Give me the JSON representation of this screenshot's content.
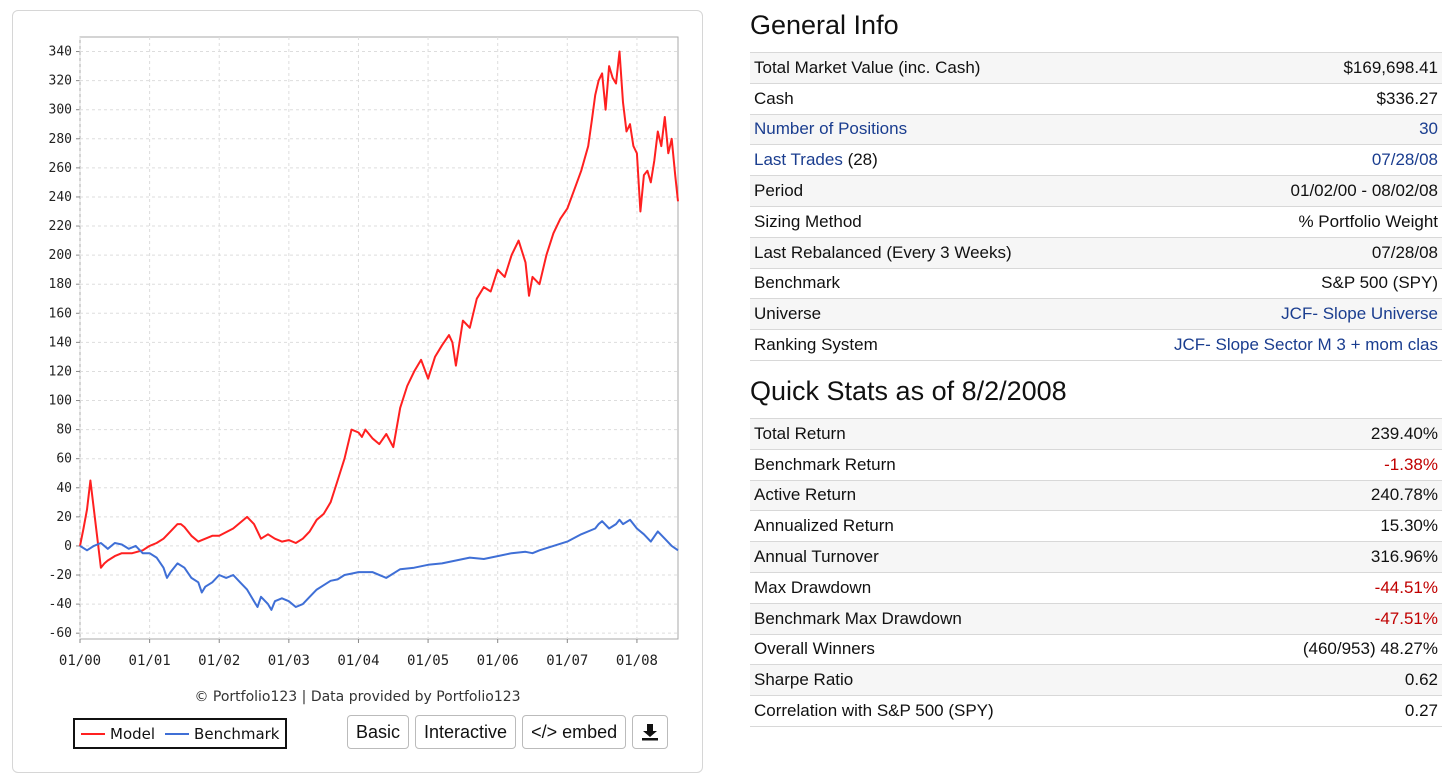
{
  "chart": {
    "credit": "© Portfolio123 | Data provided by Portfolio123",
    "legend": [
      {
        "name": "Model",
        "color": "#ff2020"
      },
      {
        "name": "Benchmark",
        "color": "#3f6fd6"
      }
    ],
    "buttons": {
      "basic": "Basic",
      "interactive": "Interactive",
      "embed": "</> embed",
      "download_icon": "download-icon"
    }
  },
  "chart_data": {
    "type": "line",
    "xlabel": "",
    "ylabel": "",
    "x_ticks": [
      "01/00",
      "01/01",
      "01/02",
      "01/03",
      "01/04",
      "01/05",
      "01/06",
      "01/07",
      "01/08"
    ],
    "x_range": [
      2000.0,
      2008.59
    ],
    "y_ticks": [
      340,
      320,
      300,
      280,
      260,
      240,
      220,
      200,
      180,
      160,
      140,
      120,
      100,
      80,
      60,
      40,
      20,
      0,
      -20,
      -40,
      -60
    ],
    "ylim": [
      -64,
      350
    ],
    "grid": true,
    "legend_position": "bottom-left",
    "series": [
      {
        "name": "Model",
        "color": "#ff2020",
        "x": [
          2000.0,
          2000.05,
          2000.1,
          2000.15,
          2000.2,
          2000.25,
          2000.3,
          2000.35,
          2000.4,
          2000.5,
          2000.6,
          2000.75,
          2000.9,
          2001.0,
          2001.1,
          2001.2,
          2001.3,
          2001.4,
          2001.45,
          2001.5,
          2001.6,
          2001.7,
          2001.8,
          2001.9,
          2002.0,
          2002.2,
          2002.4,
          2002.5,
          2002.6,
          2002.7,
          2002.8,
          2002.9,
          2003.0,
          2003.1,
          2003.2,
          2003.3,
          2003.4,
          2003.5,
          2003.6,
          2003.7,
          2003.8,
          2003.9,
          2004.0,
          2004.05,
          2004.1,
          2004.2,
          2004.3,
          2004.4,
          2004.5,
          2004.6,
          2004.7,
          2004.8,
          2004.9,
          2005.0,
          2005.1,
          2005.2,
          2005.3,
          2005.35,
          2005.4,
          2005.5,
          2005.6,
          2005.7,
          2005.8,
          2005.9,
          2006.0,
          2006.1,
          2006.2,
          2006.3,
          2006.4,
          2006.45,
          2006.5,
          2006.6,
          2006.7,
          2006.8,
          2006.9,
          2007.0,
          2007.1,
          2007.2,
          2007.3,
          2007.35,
          2007.4,
          2007.45,
          2007.5,
          2007.55,
          2007.6,
          2007.65,
          2007.7,
          2007.75,
          2007.8,
          2007.85,
          2007.9,
          2007.95,
          2008.0,
          2008.05,
          2008.1,
          2008.15,
          2008.2,
          2008.25,
          2008.3,
          2008.35,
          2008.4,
          2008.45,
          2008.5,
          2008.55,
          2008.59
        ],
        "y": [
          0,
          12,
          25,
          45,
          25,
          5,
          -15,
          -12,
          -10,
          -7,
          -5,
          -5,
          -3,
          0,
          2,
          5,
          10,
          15,
          15,
          13,
          7,
          3,
          5,
          7,
          7,
          12,
          20,
          15,
          5,
          8,
          5,
          3,
          4,
          2,
          5,
          10,
          18,
          22,
          30,
          45,
          60,
          80,
          78,
          75,
          80,
          74,
          70,
          77,
          68,
          95,
          110,
          120,
          128,
          115,
          130,
          138,
          145,
          140,
          124,
          155,
          150,
          170,
          178,
          175,
          190,
          185,
          200,
          210,
          195,
          172,
          185,
          180,
          200,
          215,
          225,
          232,
          245,
          258,
          275,
          292,
          310,
          320,
          325,
          300,
          330,
          322,
          318,
          340,
          305,
          285,
          290,
          275,
          270,
          230,
          255,
          258,
          250,
          265,
          285,
          275,
          295,
          270,
          280,
          255,
          237
        ]
      },
      {
        "name": "Benchmark",
        "color": "#3f6fd6",
        "x": [
          2000.0,
          2000.1,
          2000.2,
          2000.3,
          2000.4,
          2000.5,
          2000.6,
          2000.7,
          2000.8,
          2000.9,
          2001.0,
          2001.1,
          2001.2,
          2001.25,
          2001.3,
          2001.4,
          2001.5,
          2001.6,
          2001.7,
          2001.75,
          2001.8,
          2001.9,
          2002.0,
          2002.1,
          2002.2,
          2002.3,
          2002.4,
          2002.5,
          2002.55,
          2002.6,
          2002.7,
          2002.75,
          2002.8,
          2002.9,
          2003.0,
          2003.1,
          2003.2,
          2003.3,
          2003.4,
          2003.5,
          2003.6,
          2003.7,
          2003.8,
          2003.9,
          2004.0,
          2004.2,
          2004.4,
          2004.6,
          2004.8,
          2005.0,
          2005.2,
          2005.4,
          2005.6,
          2005.8,
          2006.0,
          2006.2,
          2006.4,
          2006.5,
          2006.6,
          2006.8,
          2007.0,
          2007.2,
          2007.4,
          2007.45,
          2007.5,
          2007.6,
          2007.7,
          2007.75,
          2007.8,
          2007.9,
          2008.0,
          2008.1,
          2008.2,
          2008.3,
          2008.4,
          2008.5,
          2008.59
        ],
        "y": [
          0,
          -3,
          0,
          2,
          -2,
          2,
          1,
          -2,
          0,
          -5,
          -5,
          -8,
          -15,
          -22,
          -18,
          -12,
          -15,
          -22,
          -25,
          -32,
          -28,
          -25,
          -20,
          -22,
          -20,
          -25,
          -30,
          -38,
          -42,
          -35,
          -40,
          -44,
          -38,
          -36,
          -38,
          -42,
          -40,
          -35,
          -30,
          -27,
          -24,
          -23,
          -20,
          -19,
          -18,
          -18,
          -22,
          -16,
          -15,
          -13,
          -12,
          -10,
          -8,
          -9,
          -7,
          -5,
          -4,
          -5,
          -3,
          0,
          3,
          8,
          12,
          15,
          17,
          12,
          15,
          18,
          15,
          18,
          12,
          8,
          3,
          10,
          5,
          0,
          -3
        ]
      }
    ]
  },
  "general_info": {
    "title": "General Info",
    "rows": [
      {
        "label": "Total Market Value (inc. Cash)",
        "value": "$169,698.41"
      },
      {
        "label": "Cash",
        "value": "$336.27"
      },
      {
        "label": "Number of Positions",
        "value": "30"
      },
      {
        "label": "Last Trades",
        "label_suffix": "(28)",
        "value": "07/28/08"
      },
      {
        "label": "Period",
        "value": "01/02/00 - 08/02/08"
      },
      {
        "label": "Sizing Method",
        "value": "% Portfolio Weight"
      },
      {
        "label": "Last Rebalanced (Every 3 Weeks)",
        "value": "07/28/08"
      },
      {
        "label": "Benchmark",
        "value": "S&P 500 (SPY)"
      },
      {
        "label": "Universe",
        "value": "JCF- Slope Universe"
      },
      {
        "label": "Ranking System",
        "value": "JCF- Slope Sector M 3 + mom clas"
      }
    ]
  },
  "quick_stats": {
    "title": "Quick Stats as of 8/2/2008",
    "rows": [
      {
        "label": "Total Return",
        "value": "239.40%"
      },
      {
        "label": "Benchmark Return",
        "value": "-1.38%"
      },
      {
        "label": "Active Return",
        "value": "240.78%"
      },
      {
        "label": "Annualized Return",
        "value": "15.30%"
      },
      {
        "label": "Annual Turnover",
        "value": "316.96%"
      },
      {
        "label": "Max Drawdown",
        "value": "-44.51%"
      },
      {
        "label": "Benchmark Max Drawdown",
        "value": "-47.51%"
      },
      {
        "label": "Overall Winners",
        "value": "(460/953) 48.27%"
      },
      {
        "label": "Sharpe Ratio",
        "value": "0.62"
      },
      {
        "label": "Correlation with S&P 500 (SPY)",
        "value": "0.27"
      }
    ]
  }
}
